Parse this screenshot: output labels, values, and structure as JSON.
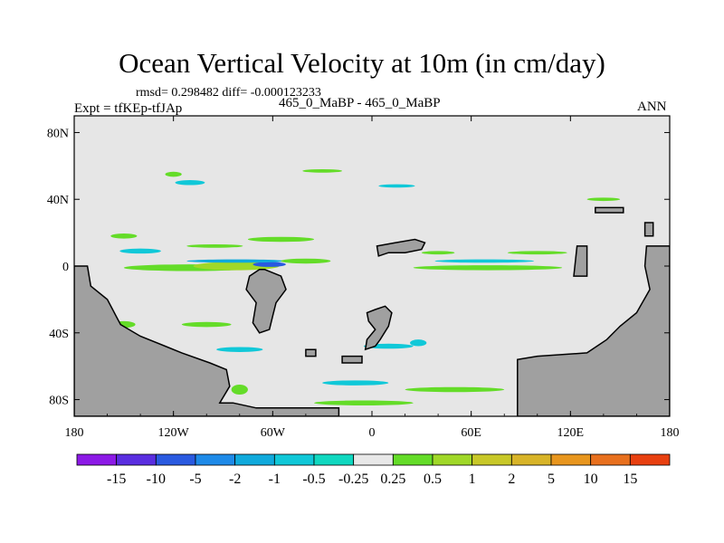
{
  "title": "Ocean Vertical Velocity at 10m (in cm/day)",
  "stats_line": "rmsd= 0.298482 diff= -0.000123233",
  "experiment_line": "Expt = tfKEp-tfJAp",
  "experiments_compared": "465_0_MaBP - 465_0_MaBP",
  "season": "ANN",
  "colors": {
    "land": "#a0a0a0",
    "ocean_near_zero": "#e6e6e6",
    "frame": "#000000"
  },
  "chart_data": {
    "type": "heatmap",
    "projection": "cylindrical-equidistant",
    "xlim": [
      -180,
      180
    ],
    "ylim": [
      -90,
      90
    ],
    "x_ticks": [
      {
        "value": -180,
        "label": "180"
      },
      {
        "value": -120,
        "label": "120W"
      },
      {
        "value": -60,
        "label": "60W"
      },
      {
        "value": 0,
        "label": "0"
      },
      {
        "value": 60,
        "label": "60E"
      },
      {
        "value": 120,
        "label": "120E"
      },
      {
        "value": 180,
        "label": "180"
      }
    ],
    "y_ticks": [
      {
        "value": 80,
        "label": "80N"
      },
      {
        "value": 40,
        "label": "40N"
      },
      {
        "value": 0,
        "label": "0"
      },
      {
        "value": -40,
        "label": "40S"
      },
      {
        "value": -80,
        "label": "80S"
      }
    ],
    "colorbar": {
      "colors": [
        "#8c1ae6",
        "#5a2ee0",
        "#2a5ae0",
        "#1e8ae8",
        "#10aadc",
        "#10c8d8",
        "#10d8c0",
        "#e8e8e8",
        "#64dc28",
        "#a0d828",
        "#c8c828",
        "#d8b428",
        "#e8961e",
        "#e8701e",
        "#e84010"
      ],
      "labels": [
        "-15",
        "-10",
        "-5",
        "-2",
        "-1",
        "-0.5",
        "-0.25",
        "0.25",
        "0.5",
        "1",
        "2",
        "5",
        "10",
        "15"
      ]
    },
    "land_polygons": [
      {
        "name": "americas",
        "points": [
          [
            -180,
            0
          ],
          [
            -172,
            0
          ],
          [
            -170,
            -12
          ],
          [
            -160,
            -20
          ],
          [
            -152,
            -35
          ],
          [
            -140,
            -42
          ],
          [
            -125,
            -48
          ],
          [
            -115,
            -52
          ],
          [
            -98,
            -58
          ],
          [
            -88,
            -62
          ],
          [
            -86,
            -72
          ],
          [
            -92,
            -82
          ],
          [
            -84,
            -82
          ],
          [
            -70,
            -85
          ],
          [
            -20,
            -85
          ],
          [
            -20,
            -90
          ],
          [
            -180,
            -90
          ]
        ]
      },
      {
        "name": "south-america-bulge",
        "points": [
          [
            -65,
            -2
          ],
          [
            -55,
            -6
          ],
          [
            -52,
            -14
          ],
          [
            -58,
            -22
          ],
          [
            -60,
            -30
          ],
          [
            -62,
            -38
          ],
          [
            -68,
            -40
          ],
          [
            -72,
            -34
          ],
          [
            -70,
            -22
          ],
          [
            -76,
            -14
          ],
          [
            -74,
            -6
          ],
          [
            -68,
            -2
          ]
        ]
      },
      {
        "name": "africa",
        "points": [
          [
            -3,
            -28
          ],
          [
            2,
            -26
          ],
          [
            8,
            -24
          ],
          [
            12,
            -28
          ],
          [
            10,
            -36
          ],
          [
            5,
            -44
          ],
          [
            2,
            -48
          ],
          [
            -4,
            -50
          ],
          [
            -3,
            -44
          ],
          [
            2,
            -38
          ],
          [
            -2,
            -33
          ]
        ]
      },
      {
        "name": "north-africa-island",
        "points": [
          [
            3,
            12
          ],
          [
            14,
            14
          ],
          [
            26,
            16
          ],
          [
            32,
            14
          ],
          [
            30,
            10
          ],
          [
            20,
            8
          ],
          [
            10,
            8
          ],
          [
            4,
            6
          ]
        ]
      },
      {
        "name": "antarctic-asia",
        "points": [
          [
            88,
            -90
          ],
          [
            88,
            -56
          ],
          [
            100,
            -54
          ],
          [
            130,
            -52
          ],
          [
            142,
            -44
          ],
          [
            150,
            -36
          ],
          [
            160,
            -28
          ],
          [
            168,
            -14
          ],
          [
            165,
            0
          ],
          [
            166,
            12
          ],
          [
            180,
            12
          ],
          [
            180,
            -90
          ]
        ]
      },
      {
        "name": "maritime-1",
        "points": [
          [
            135,
            32
          ],
          [
            152,
            32
          ],
          [
            152,
            35
          ],
          [
            135,
            35
          ]
        ]
      },
      {
        "name": "maritime-2",
        "points": [
          [
            122,
            -6
          ],
          [
            130,
            -6
          ],
          [
            130,
            12
          ],
          [
            124,
            12
          ]
        ]
      },
      {
        "name": "maritime-3",
        "points": [
          [
            165,
            18
          ],
          [
            170,
            18
          ],
          [
            170,
            26
          ],
          [
            165,
            26
          ]
        ]
      },
      {
        "name": "small-island-1",
        "points": [
          [
            -40,
            -50
          ],
          [
            -34,
            -50
          ],
          [
            -34,
            -54
          ],
          [
            -40,
            -54
          ]
        ]
      },
      {
        "name": "small-island-2",
        "points": [
          [
            -18,
            -54
          ],
          [
            -6,
            -54
          ],
          [
            -6,
            -58
          ],
          [
            -18,
            -58
          ]
        ]
      }
    ],
    "velocity_features": [
      {
        "lon": -110,
        "lat": -1,
        "w": 80,
        "h": 4,
        "class": "0.5-1"
      },
      {
        "lon": -82,
        "lat": 0,
        "w": 52,
        "h": 5,
        "class": "1-2"
      },
      {
        "lon": -62,
        "lat": 1,
        "w": 20,
        "h": 3,
        "class": "-5--2"
      },
      {
        "lon": -82,
        "lat": 3,
        "w": 60,
        "h": 2,
        "class": "-1--0.5"
      },
      {
        "lon": -40,
        "lat": 3,
        "w": 30,
        "h": 3,
        "class": "0.5-1"
      },
      {
        "lon": -55,
        "lat": 16,
        "w": 40,
        "h": 3,
        "class": "0.5-1"
      },
      {
        "lon": -95,
        "lat": 12,
        "w": 34,
        "h": 2,
        "class": "0.5-1"
      },
      {
        "lon": -140,
        "lat": 9,
        "w": 25,
        "h": 3,
        "class": "-0.5--0.25"
      },
      {
        "lon": -150,
        "lat": 18,
        "w": 16,
        "h": 3,
        "class": "0.5-1"
      },
      {
        "lon": 70,
        "lat": -1,
        "w": 90,
        "h": 3,
        "class": "0.5-1"
      },
      {
        "lon": 68,
        "lat": 3,
        "w": 60,
        "h": 2,
        "class": "-0.5--0.25"
      },
      {
        "lon": 40,
        "lat": 8,
        "w": 20,
        "h": 2,
        "class": "0.5-1"
      },
      {
        "lon": 100,
        "lat": 8,
        "w": 36,
        "h": 2,
        "class": "0.5-1"
      },
      {
        "lon": -120,
        "lat": 55,
        "w": 10,
        "h": 3,
        "class": "0.5-1"
      },
      {
        "lon": -110,
        "lat": 50,
        "w": 18,
        "h": 3,
        "class": "-0.5--0.25"
      },
      {
        "lon": -30,
        "lat": 57,
        "w": 24,
        "h": 2,
        "class": "0.5-1"
      },
      {
        "lon": 15,
        "lat": 48,
        "w": 22,
        "h": 2,
        "class": "-0.5--0.25"
      },
      {
        "lon": 140,
        "lat": 40,
        "w": 20,
        "h": 2,
        "class": "0.5-1"
      },
      {
        "lon": -150,
        "lat": -35,
        "w": 14,
        "h": 4,
        "class": "0.5-1"
      },
      {
        "lon": -100,
        "lat": -35,
        "w": 30,
        "h": 3,
        "class": "0.5-1"
      },
      {
        "lon": -80,
        "lat": -50,
        "w": 28,
        "h": 3,
        "class": "-0.5--0.25"
      },
      {
        "lon": 10,
        "lat": -48,
        "w": 30,
        "h": 3,
        "class": "-0.5--0.25"
      },
      {
        "lon": 28,
        "lat": -46,
        "w": 10,
        "h": 4,
        "class": "-0.5--0.25"
      },
      {
        "lon": -10,
        "lat": -70,
        "w": 40,
        "h": 3,
        "class": "-0.5--0.25"
      },
      {
        "lon": -5,
        "lat": -82,
        "w": 60,
        "h": 3,
        "class": "0.5-1"
      },
      {
        "lon": 50,
        "lat": -74,
        "w": 60,
        "h": 3,
        "class": "0.5-1"
      },
      {
        "lon": -80,
        "lat": -74,
        "w": 10,
        "h": 6,
        "class": "0.5-1"
      }
    ]
  }
}
